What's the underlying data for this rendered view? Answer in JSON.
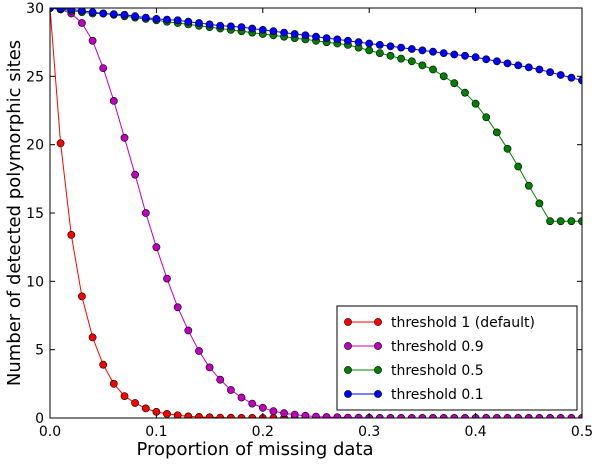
{
  "chart_data": {
    "type": "line",
    "title": "",
    "xlabel": "Proportion of missing data",
    "ylabel": "Number of detected polymorphic sites",
    "xlim": [
      0.0,
      0.5
    ],
    "ylim": [
      0,
      30
    ],
    "xticks": [
      "0.0",
      "0.1",
      "0.2",
      "0.3",
      "0.4",
      "0.5"
    ],
    "yticks": [
      "0",
      "5",
      "10",
      "15",
      "20",
      "25",
      "30"
    ],
    "grid": false,
    "legend_position": "bottom-right",
    "x": [
      0.0,
      0.01,
      0.02,
      0.03,
      0.04,
      0.05,
      0.06,
      0.07,
      0.08,
      0.09,
      0.1,
      0.11,
      0.12,
      0.13,
      0.14,
      0.15,
      0.16,
      0.17,
      0.18,
      0.19,
      0.2,
      0.21,
      0.22,
      0.23,
      0.24,
      0.25,
      0.26,
      0.27,
      0.28,
      0.29,
      0.3,
      0.31,
      0.32,
      0.33,
      0.34,
      0.35,
      0.36,
      0.37,
      0.38,
      0.39,
      0.4,
      0.41,
      0.42,
      0.43,
      0.44,
      0.45,
      0.46,
      0.47,
      0.48,
      0.49,
      0.5
    ],
    "series": [
      {
        "name": "threshold 1 (default)",
        "color": "#ff0000",
        "values": [
          30.0,
          20.1,
          13.4,
          8.9,
          5.9,
          3.9,
          2.5,
          1.6,
          1.1,
          0.7,
          0.45,
          0.3,
          0.2,
          0.12,
          0.08,
          0.05,
          0.03,
          0.02,
          0.01,
          0.01,
          0.0,
          0.0,
          0.0,
          0.0,
          0.0,
          0.0,
          0.0,
          0.0,
          0.0,
          0.0,
          0.0,
          0.0,
          0.0,
          0.0,
          0.0,
          0.0,
          0.0,
          0.0,
          0.0,
          0.0,
          0.0,
          0.0,
          0.0,
          0.0,
          0.0,
          0.0,
          0.0,
          0.0,
          0.0,
          0.0,
          0.0
        ]
      },
      {
        "name": "threshold 0.9",
        "color": "#bf00bf",
        "values": [
          30.0,
          29.9,
          29.6,
          28.9,
          27.6,
          25.6,
          23.2,
          20.5,
          17.8,
          15.0,
          12.5,
          10.2,
          8.1,
          6.4,
          4.9,
          3.7,
          2.8,
          2.05,
          1.5,
          1.05,
          0.75,
          0.5,
          0.35,
          0.25,
          0.16,
          0.1,
          0.07,
          0.05,
          0.03,
          0.02,
          0.01,
          0.0,
          0.0,
          0.0,
          0.0,
          0.0,
          0.0,
          0.0,
          0.0,
          0.0,
          0.0,
          0.0,
          0.0,
          0.0,
          0.0,
          0.0,
          0.0,
          0.0,
          0.0,
          0.0,
          0.0
        ]
      },
      {
        "name": "threshold 0.5",
        "color": "#008000",
        "values": [
          30.0,
          29.9,
          29.8,
          29.7,
          29.6,
          29.6,
          29.5,
          29.4,
          29.3,
          29.2,
          29.1,
          29.0,
          28.9,
          28.8,
          28.7,
          28.6,
          28.5,
          28.4,
          28.3,
          28.2,
          28.1,
          28.0,
          27.9,
          27.8,
          27.7,
          27.6,
          27.5,
          27.4,
          27.3,
          27.1,
          26.9,
          26.7,
          26.5,
          26.3,
          26.1,
          25.8,
          25.5,
          25.0,
          24.5,
          23.8,
          23.0,
          22.0,
          20.9,
          19.7,
          18.4,
          17.0,
          15.7,
          14.4,
          14.4,
          14.4,
          14.4
        ]
      },
      {
        "name": "threshold 0.1",
        "color": "#0000ff",
        "values": [
          30.0,
          29.95,
          29.9,
          29.8,
          29.7,
          29.6,
          29.55,
          29.5,
          29.4,
          29.3,
          29.2,
          29.15,
          29.1,
          29.0,
          28.9,
          28.8,
          28.7,
          28.65,
          28.6,
          28.5,
          28.4,
          28.3,
          28.2,
          28.1,
          28.0,
          27.9,
          27.8,
          27.7,
          27.6,
          27.5,
          27.4,
          27.3,
          27.2,
          27.1,
          27.0,
          26.9,
          26.8,
          26.7,
          26.6,
          26.5,
          26.4,
          26.25,
          26.1,
          25.95,
          25.8,
          25.65,
          25.5,
          25.3,
          25.1,
          24.9,
          24.7
        ]
      }
    ]
  }
}
